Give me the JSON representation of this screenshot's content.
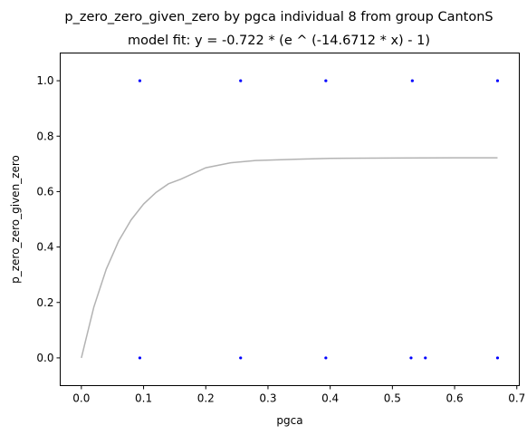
{
  "chart_data": {
    "type": "scatter",
    "title": "p_zero_zero_given_zero by pgca individual 8 from group CantonS",
    "subtitle": "model fit: y = -0.722 * (e ^ (-14.6712 * x) - 1)",
    "xlabel": "pgca",
    "ylabel": "p_zero_zero_given_zero",
    "xlim": [
      -0.034,
      0.704
    ],
    "ylim": [
      -0.1,
      1.1
    ],
    "x_ticks": [
      "0.0",
      "0.1",
      "0.2",
      "0.3",
      "0.4",
      "0.5",
      "0.6",
      "0.7"
    ],
    "y_ticks": [
      "0.0",
      "0.2",
      "0.4",
      "0.6",
      "0.8",
      "1.0"
    ],
    "grid": false,
    "series": [
      {
        "kind": "points",
        "color": "#0000ff",
        "points": [
          {
            "x": 0.094,
            "y": 1.0
          },
          {
            "x": 0.256,
            "y": 1.0
          },
          {
            "x": 0.393,
            "y": 1.0
          },
          {
            "x": 0.532,
            "y": 1.0
          },
          {
            "x": 0.669,
            "y": 1.0
          },
          {
            "x": 0.094,
            "y": 0.0
          },
          {
            "x": 0.256,
            "y": 0.0
          },
          {
            "x": 0.393,
            "y": 0.0
          },
          {
            "x": 0.53,
            "y": 0.0
          },
          {
            "x": 0.553,
            "y": 0.0
          },
          {
            "x": 0.669,
            "y": 0.0
          }
        ]
      },
      {
        "kind": "fit-line",
        "color": "#b3b3b3",
        "points": [
          {
            "x": 0.0,
            "y": 0.0
          },
          {
            "x": 0.02,
            "y": 0.183
          },
          {
            "x": 0.04,
            "y": 0.32
          },
          {
            "x": 0.06,
            "y": 0.422
          },
          {
            "x": 0.08,
            "y": 0.498
          },
          {
            "x": 0.1,
            "y": 0.555
          },
          {
            "x": 0.12,
            "y": 0.597
          },
          {
            "x": 0.14,
            "y": 0.628
          },
          {
            "x": 0.16,
            "y": 0.645
          },
          {
            "x": 0.2,
            "y": 0.686
          },
          {
            "x": 0.24,
            "y": 0.704
          },
          {
            "x": 0.28,
            "y": 0.712
          },
          {
            "x": 0.35,
            "y": 0.717
          },
          {
            "x": 0.4,
            "y": 0.72
          },
          {
            "x": 0.5,
            "y": 0.721
          },
          {
            "x": 0.6,
            "y": 0.722
          },
          {
            "x": 0.669,
            "y": 0.722
          }
        ]
      }
    ]
  }
}
